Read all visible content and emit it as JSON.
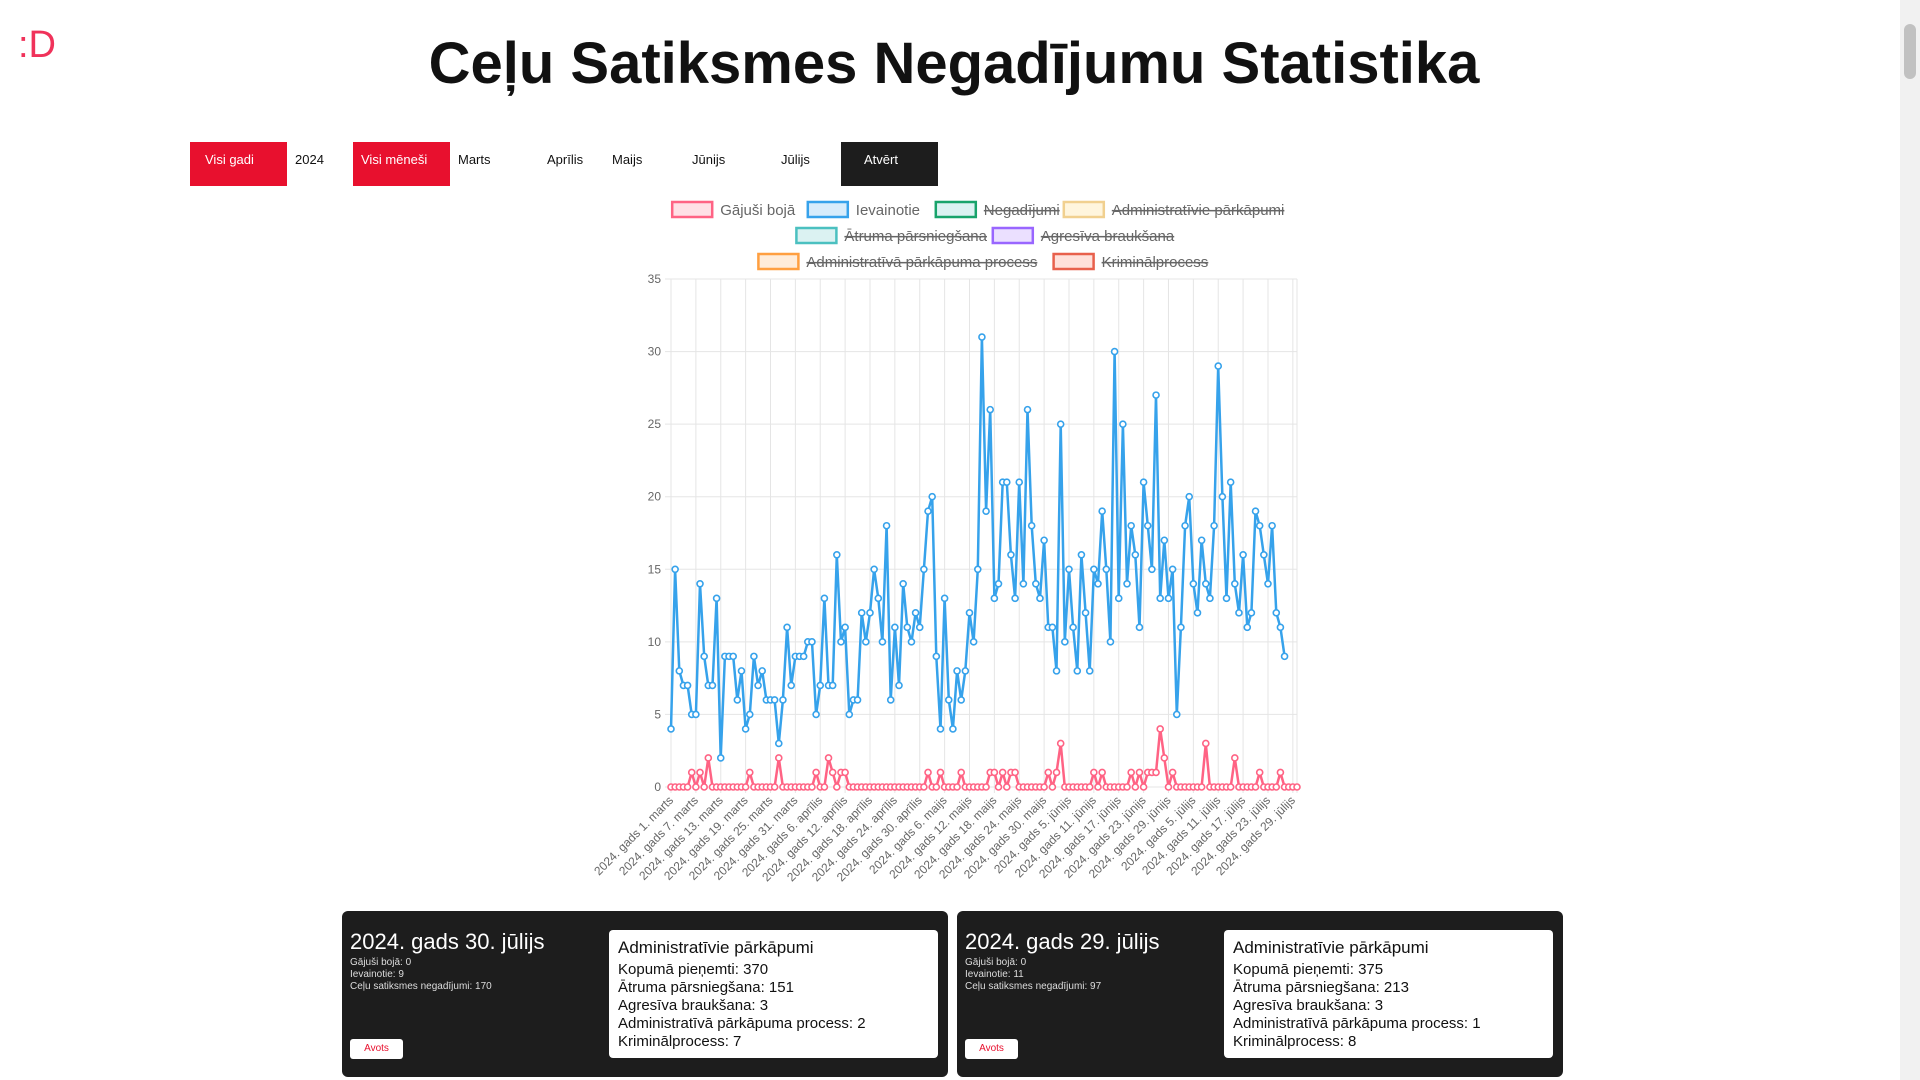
{
  "logo": ":D",
  "page_title": "Ceļu Satiksmes Negadījumu Statistika",
  "filters": {
    "all_years": "Visi gadi",
    "year": "2024",
    "all_months": "Visi mēneši",
    "months": [
      "Marts",
      "Aprīlis",
      "Maijs",
      "Jūnijs",
      "Jūlijs"
    ],
    "open": "Atvērt"
  },
  "colors": {
    "accent": "#e8102e",
    "dark": "#1d1d1d",
    "dead": "#ff6384",
    "injured": "#36a2eb"
  },
  "chart_data": {
    "type": "line",
    "ylim": [
      0,
      35
    ],
    "yticks": [
      0,
      5,
      10,
      15,
      20,
      25,
      30,
      35
    ],
    "grid": true,
    "legend_position": "top",
    "legend": [
      {
        "label": "Gājuši bojā",
        "visible": true,
        "fill": "rgba(255,99,132,0.2)",
        "stroke": "#ff6384"
      },
      {
        "label": "Ievainotie",
        "visible": true,
        "fill": "rgba(54,162,235,0.2)",
        "stroke": "#36a2eb"
      },
      {
        "label": "Negadījumi",
        "visible": false,
        "fill": "rgba(75,192,192,0.2)",
        "stroke": "#18a36b"
      },
      {
        "label": "Administratīvie pārkāpumi",
        "visible": false,
        "fill": "rgba(255,206,86,0.2)",
        "stroke": "#f1d08f"
      },
      {
        "label": "Ātruma pārsniegšana",
        "visible": false,
        "fill": "rgba(75,192,192,0.2)",
        "stroke": "#4bc0c0"
      },
      {
        "label": "Agresīva braukšana",
        "visible": false,
        "fill": "rgba(153,102,255,0.2)",
        "stroke": "#9966ff"
      },
      {
        "label": "Administratīvā pārkāpuma process",
        "visible": false,
        "fill": "rgba(255,159,64,0.2)",
        "stroke": "#ff9f40"
      },
      {
        "label": "Kriminālprocess",
        "visible": false,
        "fill": "rgba(255,99,71,0.2)",
        "stroke": "#e8604c"
      }
    ],
    "x_tick_labels": [
      "2024. gads 1. marts",
      "2024. gads 7. marts",
      "2024. gads 13. marts",
      "2024. gads 19. marts",
      "2024. gads 25. marts",
      "2024. gads 31. marts",
      "2024. gads 6. aprīlis",
      "2024. gads 12. aprīlis",
      "2024. gads 18. aprīlis",
      "2024. gads 24. aprīlis",
      "2024. gads 30. aprīlis",
      "2024. gads 6. maijs",
      "2024. gads 12. maijs",
      "2024. gads 18. maijs",
      "2024. gads 24. maijs",
      "2024. gads 30. maijs",
      "2024. gads 5. jūnijs",
      "2024. gads 11. jūnijs",
      "2024. gads 17. jūnijs",
      "2024. gads 23. jūnijs",
      "2024. gads 29. jūnijs",
      "2024. gads 5. jūlijs",
      "2024. gads 11. jūlijs",
      "2024. gads 17. jūlijs",
      "2024. gads 23. jūlijs",
      "2024. gads 29. jūlijs"
    ],
    "series": [
      {
        "name": "Gājuši bojā",
        "values": [
          0,
          0,
          0,
          0,
          0,
          1,
          0,
          1,
          0,
          2,
          0,
          0,
          0,
          0,
          0,
          0,
          0,
          0,
          0,
          1,
          0,
          0,
          0,
          0,
          0,
          0,
          2,
          0,
          0,
          0,
          0,
          0,
          0,
          0,
          0,
          1,
          0,
          0,
          2,
          1,
          0,
          1,
          1,
          0,
          0,
          0,
          0,
          0,
          0,
          0,
          0,
          0,
          0,
          0,
          0,
          0,
          0,
          0,
          0,
          0,
          0,
          0,
          1,
          0,
          0,
          1,
          0,
          0,
          0,
          0,
          1,
          0,
          0,
          0,
          0,
          0,
          0,
          1,
          1,
          0,
          1,
          0,
          1,
          1,
          0,
          0,
          0,
          0,
          0,
          0,
          0,
          1,
          0,
          1,
          3,
          0,
          0,
          0,
          0,
          0,
          0,
          0,
          1,
          0,
          1,
          0,
          0,
          0,
          0,
          0,
          0,
          1,
          0,
          1,
          0,
          1,
          1,
          1,
          4,
          2,
          0,
          1,
          0,
          0,
          0,
          0,
          0,
          0,
          0,
          3,
          0,
          0,
          0,
          0,
          0,
          0,
          2,
          0,
          0,
          0,
          0,
          0,
          1,
          0,
          0,
          0,
          0,
          1,
          0,
          0,
          0,
          0
        ]
      },
      {
        "name": "Ievainotie",
        "values": [
          4,
          15,
          8,
          7,
          7,
          5,
          5,
          14,
          9,
          7,
          7,
          13,
          2,
          9,
          9,
          9,
          6,
          8,
          4,
          5,
          9,
          7,
          8,
          6,
          6,
          6,
          3,
          6,
          11,
          7,
          9,
          9,
          9,
          10,
          10,
          5,
          7,
          13,
          7,
          7,
          16,
          10,
          11,
          5,
          6,
          6,
          12,
          10,
          12,
          15,
          13,
          10,
          18,
          6,
          11,
          7,
          14,
          11,
          10,
          12,
          11,
          15,
          19,
          20,
          9,
          4,
          13,
          6,
          4,
          8,
          6,
          8,
          12,
          10,
          15,
          31,
          19,
          26,
          13,
          14,
          21,
          21,
          16,
          13,
          21,
          14,
          26,
          18,
          14,
          13,
          17,
          11,
          11,
          8,
          25,
          10,
          15,
          11,
          8,
          16,
          12,
          8,
          15,
          14,
          19,
          15,
          10,
          30,
          13,
          25,
          14,
          18,
          16,
          11,
          21,
          18,
          15,
          27,
          13,
          17,
          13,
          15,
          5,
          11,
          18,
          20,
          14,
          12,
          17,
          14,
          13,
          18,
          29,
          20,
          13,
          21,
          14,
          12,
          16,
          11,
          12,
          19,
          18,
          16,
          14,
          18,
          12,
          11,
          9
        ]
      }
    ]
  },
  "cards": [
    {
      "date": "2024. gads 30. jūlijs",
      "dead": "Gājuši bojā: 0",
      "injured": "Ievainotie: 9",
      "accidents": "Ceļu satiksmes negadījumi: 170",
      "source": "Avots",
      "violations_title": "Administratīvie pārkāpumi",
      "total": "Kopumā pieņemti: 370",
      "speeding": "Ātruma pārsniegšana: 151",
      "aggressive": "Agresīva braukšana: 3",
      "admin_process": "Administratīvā pārkāpuma process: 2",
      "criminal": "Kriminālprocess: 7"
    },
    {
      "date": "2024. gads 29. jūlijs",
      "dead": "Gājuši bojā: 0",
      "injured": "Ievainotie: 11",
      "accidents": "Ceļu satiksmes negadījumi: 97",
      "source": "Avots",
      "violations_title": "Administratīvie pārkāpumi",
      "total": "Kopumā pieņemti: 375",
      "speeding": "Ātruma pārsniegšana: 213",
      "aggressive": "Agresīva braukšana: 3",
      "admin_process": "Administratīvā pārkāpuma process: 1",
      "criminal": "Kriminālprocess: 8"
    }
  ]
}
